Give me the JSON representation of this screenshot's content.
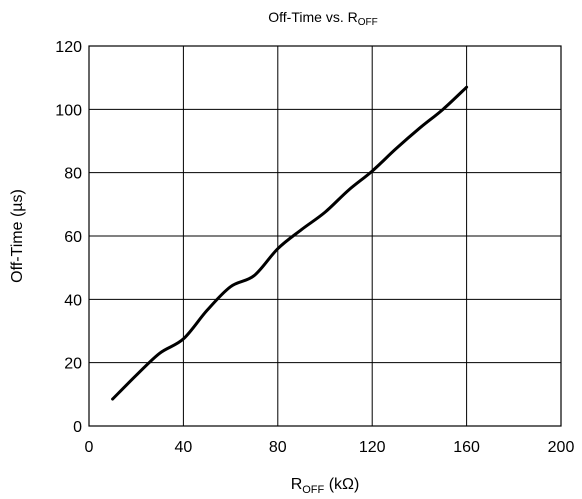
{
  "chart_data": {
    "type": "line",
    "title": {
      "main": "Off-Time vs. R",
      "sub": "OFF"
    },
    "xlabel": {
      "main": "R",
      "sub": "OFF",
      "rest": " (kΩ)"
    },
    "ylabel": "Off-Time (µs)",
    "xlim": [
      0,
      200
    ],
    "ylim": [
      0,
      120
    ],
    "xticks": [
      "0",
      "40",
      "80",
      "120",
      "160",
      "200"
    ],
    "yticks": [
      "0",
      "20",
      "40",
      "60",
      "80",
      "100",
      "120"
    ],
    "grid": true,
    "series": [
      {
        "x": [
          10,
          20,
          30,
          40,
          50,
          60,
          70,
          80,
          90,
          100,
          110,
          120,
          130,
          140,
          150,
          160
        ],
        "y": [
          8.5,
          16,
          23,
          27.5,
          36.5,
          44,
          47.5,
          56,
          62,
          67.5,
          74.5,
          80.5,
          87.5,
          94,
          100,
          107
        ]
      }
    ]
  }
}
